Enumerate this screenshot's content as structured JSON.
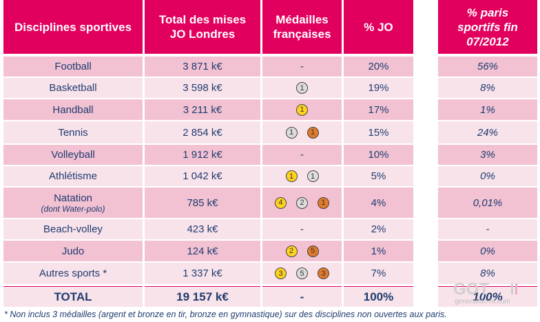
{
  "headers": {
    "discipline": "Disciplines sportives",
    "mises": "Total des mises JO Londres",
    "medailles": "Médailles françaises",
    "pct_jo": "% JO",
    "pct_paris": "% paris sportifs fin 07/2012"
  },
  "rows": [
    {
      "name": "Football",
      "sub": "",
      "mises": "3 871 k€",
      "medals": [],
      "dash": "-",
      "pct_jo": "20%",
      "pct_paris": "56%"
    },
    {
      "name": "Basketball",
      "sub": "",
      "mises": "3 598 k€",
      "medals": [
        {
          "type": "silver",
          "n": "1"
        }
      ],
      "dash": "",
      "pct_jo": "19%",
      "pct_paris": "8%"
    },
    {
      "name": "Handball",
      "sub": "",
      "mises": "3 211 k€",
      "medals": [
        {
          "type": "gold",
          "n": "1"
        }
      ],
      "dash": "",
      "pct_jo": "17%",
      "pct_paris": "1%"
    },
    {
      "name": "Tennis",
      "sub": "",
      "mises": "2 854 k€",
      "medals": [
        {
          "type": "silver",
          "n": "1"
        },
        {
          "type": "bronze",
          "n": "1"
        }
      ],
      "dash": "",
      "pct_jo": "15%",
      "pct_paris": "24%"
    },
    {
      "name": "Volleyball",
      "sub": "",
      "mises": "1 912 k€",
      "medals": [],
      "dash": "-",
      "pct_jo": "10%",
      "pct_paris": "3%"
    },
    {
      "name": "Athlétisme",
      "sub": "",
      "mises": "1 042 k€",
      "medals": [
        {
          "type": "gold",
          "n": "1"
        },
        {
          "type": "silver",
          "n": "1"
        }
      ],
      "dash": "",
      "pct_jo": "5%",
      "pct_paris": "0%"
    },
    {
      "name": "Natation",
      "sub": "(dont Water-polo)",
      "mises": "785 k€",
      "medals": [
        {
          "type": "gold",
          "n": "4"
        },
        {
          "type": "silver",
          "n": "2"
        },
        {
          "type": "bronze",
          "n": "1"
        }
      ],
      "dash": "",
      "pct_jo": "4%",
      "pct_paris": "0,01%"
    },
    {
      "name": "Beach-volley",
      "sub": "",
      "mises": "423 k€",
      "medals": [],
      "dash": "-",
      "pct_jo": "2%",
      "pct_paris": "-"
    },
    {
      "name": "Judo",
      "sub": "",
      "mises": "124 k€",
      "medals": [
        {
          "type": "gold",
          "n": "2"
        },
        {
          "type": "bronze",
          "n": "5"
        }
      ],
      "dash": "",
      "pct_jo": "1%",
      "pct_paris": "0%"
    },
    {
      "name": "Autres sports *",
      "sub": "",
      "mises": "1 337 k€",
      "medals": [
        {
          "type": "gold",
          "n": "3"
        },
        {
          "type": "silver",
          "n": "5"
        },
        {
          "type": "bronze",
          "n": "3"
        }
      ],
      "dash": "",
      "pct_jo": "7%",
      "pct_paris": "8%"
    }
  ],
  "total": {
    "name": "TOTAL",
    "mises": "19 157 k€",
    "medals": "-",
    "pct_jo": "100%",
    "pct_paris": "100%"
  },
  "footnote": "* Non inclus 3 médailles (argent et bronze en tir, bronze en gymnastique) sur des disciplines non ouvertes aux paris.",
  "watermark": {
    "brand": "GOT",
    "site": "generation-nt.com"
  },
  "colors": {
    "header": "#e2005f",
    "row_dark": "#f2c2d3",
    "row_light": "#f9e3eb",
    "text": "#1f3b6e",
    "gold": "#ffd21f",
    "silver": "#dcdcdc",
    "bronze": "#e07a2b"
  }
}
